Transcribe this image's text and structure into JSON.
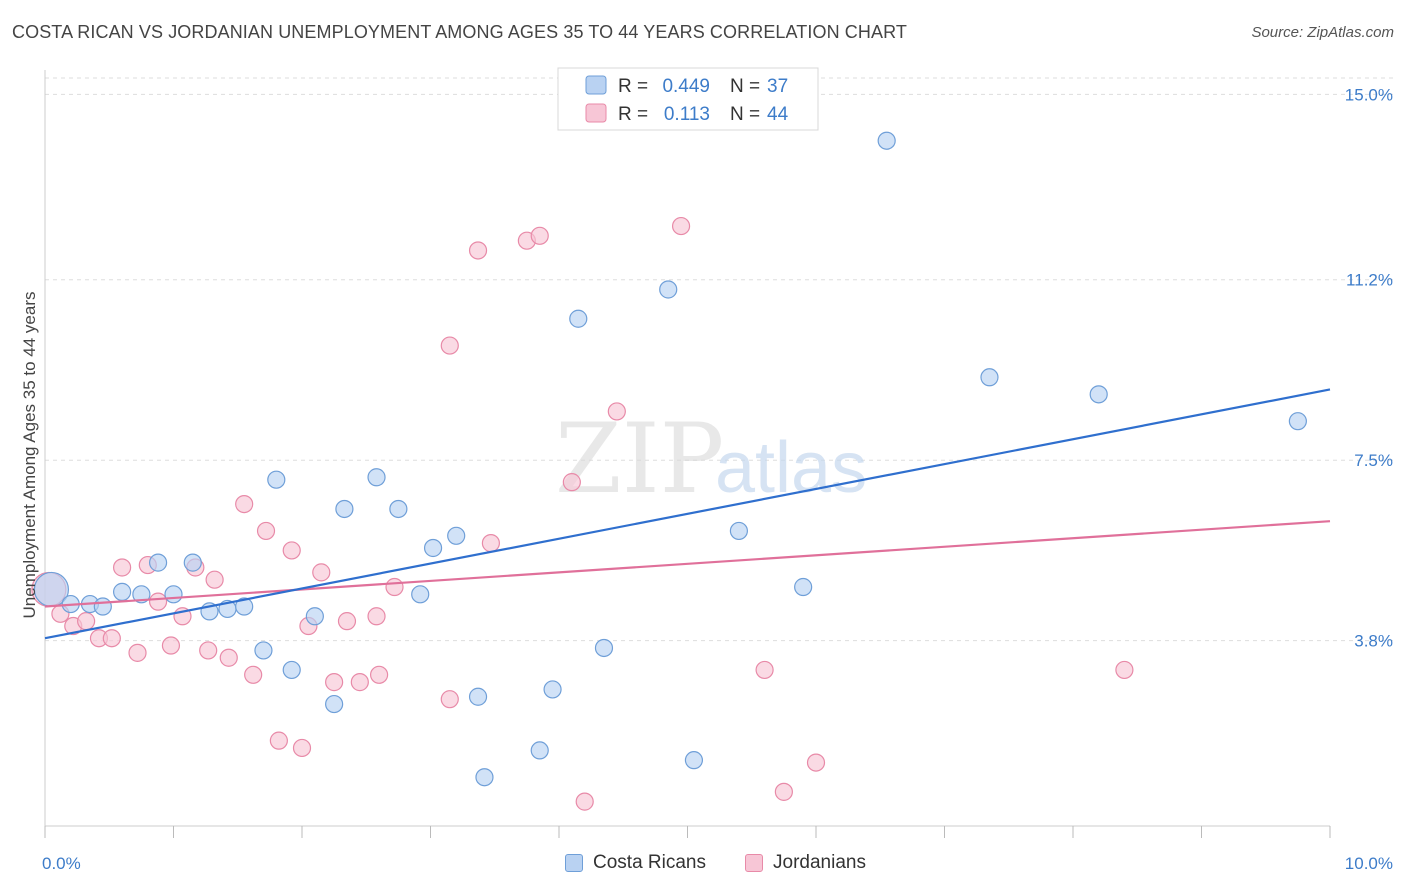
{
  "title": "COSTA RICAN VS JORDANIAN UNEMPLOYMENT AMONG AGES 35 TO 44 YEARS CORRELATION CHART",
  "source": "Source: ZipAtlas.com",
  "watermark": {
    "zip": "ZIP",
    "atlas": "atlas"
  },
  "colors": {
    "blue_fill": "#b9d2f2",
    "blue_stroke": "#6f9fd8",
    "blue_line": "#2f6fce",
    "pink_fill": "#f7c6d6",
    "pink_stroke": "#e88aa8",
    "pink_line": "#e0709a",
    "tick_text": "#3d7cc9",
    "grid": "#dddddd"
  },
  "legend": {
    "rows": [
      {
        "r_label": "R =",
        "r_value": "0.449",
        "n_label": "N =",
        "n_value": "37"
      },
      {
        "r_label": "R =",
        "r_value": "0.113",
        "n_label": "N =",
        "n_value": "44"
      }
    ]
  },
  "chart_data": {
    "type": "scatter",
    "title": "COSTA RICAN VS JORDANIAN UNEMPLOYMENT AMONG AGES 35 TO 44 YEARS CORRELATION CHART",
    "xlabel": "",
    "ylabel": "Unemployment Among Ages 35 to 44 years",
    "xlim": [
      0,
      10
    ],
    "ylim": [
      0,
      15.5
    ],
    "x_tick_labels": [
      "0.0%",
      "10.0%"
    ],
    "y_ticks": [
      3.8,
      7.5,
      11.2,
      15.0
    ],
    "y_tick_labels": [
      "3.8%",
      "7.5%",
      "11.2%",
      "15.0%"
    ],
    "grid": "horizontal dashed",
    "legend_position": "top-center",
    "series": [
      {
        "name": "Costa Ricans",
        "color": "#b9d2f2",
        "trend": {
          "x": [
            0,
            10
          ],
          "y": [
            3.85,
            8.95
          ]
        },
        "points": [
          {
            "x": 0.05,
            "y": 4.85,
            "big": true
          },
          {
            "x": 0.2,
            "y": 4.55
          },
          {
            "x": 0.35,
            "y": 4.55
          },
          {
            "x": 0.45,
            "y": 4.5
          },
          {
            "x": 0.6,
            "y": 4.8
          },
          {
            "x": 0.75,
            "y": 4.75
          },
          {
            "x": 0.88,
            "y": 5.4
          },
          {
            "x": 1.0,
            "y": 4.75
          },
          {
            "x": 1.15,
            "y": 5.4
          },
          {
            "x": 1.28,
            "y": 4.4
          },
          {
            "x": 1.42,
            "y": 4.45
          },
          {
            "x": 1.55,
            "y": 4.5
          },
          {
            "x": 1.7,
            "y": 3.6
          },
          {
            "x": 1.8,
            "y": 7.1
          },
          {
            "x": 1.92,
            "y": 3.2
          },
          {
            "x": 2.1,
            "y": 4.3
          },
          {
            "x": 2.25,
            "y": 2.5
          },
          {
            "x": 2.33,
            "y": 6.5
          },
          {
            "x": 2.58,
            "y": 7.15
          },
          {
            "x": 2.75,
            "y": 6.5
          },
          {
            "x": 2.92,
            "y": 4.75
          },
          {
            "x": 3.02,
            "y": 5.7
          },
          {
            "x": 3.2,
            "y": 5.95
          },
          {
            "x": 3.37,
            "y": 2.65
          },
          {
            "x": 3.42,
            "y": 1.0
          },
          {
            "x": 3.85,
            "y": 1.55
          },
          {
            "x": 3.95,
            "y": 2.8
          },
          {
            "x": 4.15,
            "y": 10.4
          },
          {
            "x": 4.35,
            "y": 3.65
          },
          {
            "x": 4.85,
            "y": 11.0
          },
          {
            "x": 5.05,
            "y": 1.35
          },
          {
            "x": 5.4,
            "y": 6.05
          },
          {
            "x": 5.9,
            "y": 4.9
          },
          {
            "x": 6.55,
            "y": 14.05
          },
          {
            "x": 7.35,
            "y": 9.2
          },
          {
            "x": 8.2,
            "y": 8.85
          },
          {
            "x": 9.75,
            "y": 8.3
          }
        ]
      },
      {
        "name": "Jordanians",
        "color": "#f7c6d6",
        "trend": {
          "x": [
            0,
            10
          ],
          "y": [
            4.5,
            6.25
          ]
        },
        "points": [
          {
            "x": 0.03,
            "y": 4.85,
            "big": true
          },
          {
            "x": 0.12,
            "y": 4.35
          },
          {
            "x": 0.22,
            "y": 4.1
          },
          {
            "x": 0.32,
            "y": 4.2
          },
          {
            "x": 0.42,
            "y": 3.85
          },
          {
            "x": 0.52,
            "y": 3.85
          },
          {
            "x": 0.6,
            "y": 5.3
          },
          {
            "x": 0.72,
            "y": 3.55
          },
          {
            "x": 0.8,
            "y": 5.35
          },
          {
            "x": 0.88,
            "y": 4.6
          },
          {
            "x": 0.98,
            "y": 3.7
          },
          {
            "x": 1.07,
            "y": 4.3
          },
          {
            "x": 1.17,
            "y": 5.3
          },
          {
            "x": 1.27,
            "y": 3.6
          },
          {
            "x": 1.32,
            "y": 5.05
          },
          {
            "x": 1.43,
            "y": 3.45
          },
          {
            "x": 1.55,
            "y": 6.6
          },
          {
            "x": 1.62,
            "y": 3.1
          },
          {
            "x": 1.72,
            "y": 6.05
          },
          {
            "x": 1.82,
            "y": 1.75
          },
          {
            "x": 1.92,
            "y": 5.65
          },
          {
            "x": 2.0,
            "y": 1.6
          },
          {
            "x": 2.05,
            "y": 4.1
          },
          {
            "x": 2.15,
            "y": 5.2
          },
          {
            "x": 2.25,
            "y": 2.95
          },
          {
            "x": 2.35,
            "y": 4.2
          },
          {
            "x": 2.45,
            "y": 2.95
          },
          {
            "x": 2.58,
            "y": 4.3
          },
          {
            "x": 2.6,
            "y": 3.1
          },
          {
            "x": 2.72,
            "y": 4.9
          },
          {
            "x": 3.15,
            "y": 9.85
          },
          {
            "x": 3.15,
            "y": 2.6
          },
          {
            "x": 3.37,
            "y": 11.8
          },
          {
            "x": 3.47,
            "y": 5.8
          },
          {
            "x": 3.75,
            "y": 12.0
          },
          {
            "x": 3.85,
            "y": 12.1
          },
          {
            "x": 4.1,
            "y": 7.05
          },
          {
            "x": 4.2,
            "y": 0.5
          },
          {
            "x": 4.45,
            "y": 8.5
          },
          {
            "x": 4.95,
            "y": 12.3
          },
          {
            "x": 5.6,
            "y": 3.2
          },
          {
            "x": 5.75,
            "y": 0.7
          },
          {
            "x": 6.0,
            "y": 1.3
          },
          {
            "x": 8.4,
            "y": 3.2
          }
        ]
      }
    ]
  }
}
